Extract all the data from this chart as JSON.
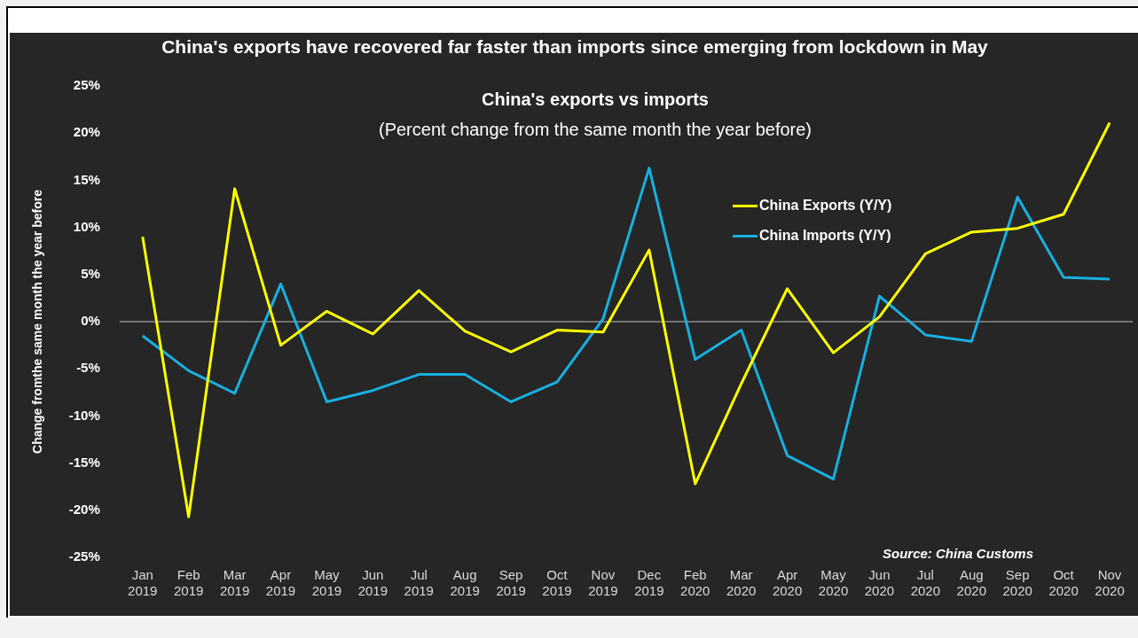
{
  "chart_data": {
    "type": "line",
    "title": "China's exports have recovered far faster than imports since emerging from lockdown in May",
    "subtitle": "China's  exports vs imports\n(Percent change from the same month the year before)",
    "ylabel": "Change fromthe same month the year before",
    "categories": [
      "Jan 2019",
      "Feb 2019",
      "Mar 2019",
      "Apr 2019",
      "May 2019",
      "Jun 2019",
      "Jul 2019",
      "Aug 2019",
      "Sep 2019",
      "Oct 2019",
      "Nov 2019",
      "Dec 2019",
      "Feb 2020",
      "Mar 2020",
      "Apr 2020",
      "May 2020",
      "Jun 2020",
      "Jul 2020",
      "Aug 2020",
      "Sep 2020",
      "Oct 2020",
      "Nov 2020"
    ],
    "series": [
      {
        "name": "China Exports (Y/Y)",
        "color": "#ffff00",
        "values": [
          9.0,
          -20.7,
          14.1,
          -2.5,
          1.1,
          -1.3,
          3.3,
          -1.0,
          -3.2,
          -0.9,
          -1.1,
          7.6,
          -17.2,
          -6.6,
          3.5,
          -3.3,
          0.5,
          7.2,
          9.5,
          9.9,
          11.4,
          21.1
        ]
      },
      {
        "name": "China Imports (Y/Y)",
        "color": "#17b0e0",
        "values": [
          -1.5,
          -5.2,
          -7.6,
          4.0,
          -8.5,
          -7.3,
          -5.6,
          -5.6,
          -8.5,
          -6.4,
          0.3,
          16.3,
          -4.0,
          -0.9,
          -14.2,
          -16.7,
          2.7,
          -1.4,
          -2.1,
          13.2,
          4.7,
          4.5
        ]
      }
    ],
    "ylim": [
      -25,
      25
    ],
    "yticks": [
      {
        "value": -25,
        "label": "-25%"
      },
      {
        "value": -20,
        "label": "-20%"
      },
      {
        "value": -15,
        "label": "-15%"
      },
      {
        "value": -10,
        "label": "-10%"
      },
      {
        "value": -5,
        "label": "-5%"
      },
      {
        "value": 0,
        "label": "0%"
      },
      {
        "value": 5,
        "label": "5%"
      },
      {
        "value": 10,
        "label": "10%"
      },
      {
        "value": 15,
        "label": "15%"
      },
      {
        "value": 20,
        "label": "20%"
      },
      {
        "value": 25,
        "label": "25%"
      }
    ],
    "ref_lines": [
      {
        "axis": "y",
        "value": 0,
        "color": "#bfbfbf"
      }
    ],
    "grid": false,
    "legend": "top right",
    "marker": "none",
    "line_style": "solid",
    "annotations": [
      "Source: China Customs"
    ]
  }
}
